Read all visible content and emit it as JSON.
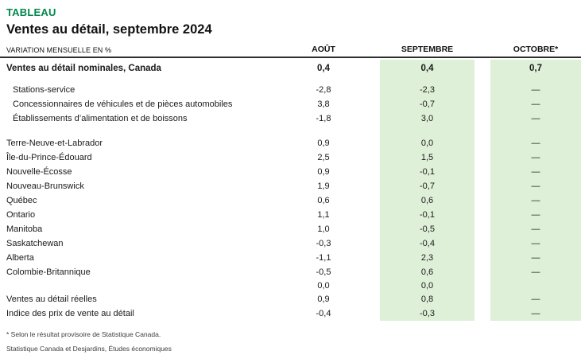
{
  "page": {
    "kicker": "TABLEAU",
    "title": "Ventes au détail, septembre 2024"
  },
  "colors": {
    "accent_green": "#00874e",
    "band_green": "#dff0d8",
    "rule_dark": "#2e2e2e"
  },
  "table": {
    "unit_label": "VARIATION MENSUELLE EN %",
    "columns": [
      "AOÛT",
      "SEPTEMBRE",
      "OCTOBRE*"
    ],
    "rows": [
      {
        "label": "Ventes au détail nominales, Canada",
        "style": "lead",
        "values": [
          "0,4",
          "0,4",
          "0,7"
        ]
      },
      {
        "style": "spacer-sm"
      },
      {
        "label": "Stations-service",
        "style": "sub",
        "indent": true,
        "values": [
          "-2,8",
          "-2,3",
          "—"
        ]
      },
      {
        "label": "Concessionnaires de véhicules et de pièces automobiles",
        "style": "sub",
        "indent": true,
        "values": [
          "3,8",
          "-0,7",
          "—"
        ]
      },
      {
        "label": "Établissements d’alimentation et de boissons",
        "style": "sub",
        "indent": true,
        "values": [
          "-1,8",
          "3,0",
          "—"
        ]
      },
      {
        "style": "spacer-lg"
      },
      {
        "label": "Terre-Neuve-et-Labrador",
        "style": "plain",
        "values": [
          "0,9",
          "0,0",
          "—"
        ]
      },
      {
        "label": "Île-du-Prince-Édouard",
        "style": "plain",
        "values": [
          "2,5",
          "1,5",
          "—"
        ]
      },
      {
        "label": "Nouvelle-Écosse",
        "style": "plain",
        "values": [
          "0,9",
          "-0,1",
          "—"
        ]
      },
      {
        "label": "Nouveau-Brunswick",
        "style": "plain",
        "values": [
          "1,9",
          "-0,7",
          "—"
        ]
      },
      {
        "label": "Québec",
        "style": "plain",
        "values": [
          "0,6",
          "0,6",
          "—"
        ]
      },
      {
        "label": "Ontario",
        "style": "plain",
        "values": [
          "1,1",
          "-0,1",
          "—"
        ]
      },
      {
        "label": "Manitoba",
        "style": "plain",
        "values": [
          "1,0",
          "-0,5",
          "—"
        ]
      },
      {
        "label": "Saskatchewan",
        "style": "plain",
        "values": [
          "-0,3",
          "-0,4",
          "—"
        ]
      },
      {
        "label": "Alberta",
        "style": "plain",
        "values": [
          "-1,1",
          "2,3",
          "—"
        ]
      },
      {
        "label": "Colombie-Britannique",
        "style": "plain",
        "values": [
          "-0,5",
          "0,6",
          "—"
        ]
      },
      {
        "label": "",
        "style": "blank",
        "values": [
          "0,0",
          "0,0",
          ""
        ]
      },
      {
        "label": "Ventes au détail réelles",
        "style": "plain",
        "values": [
          "0,9",
          "0,8",
          "—"
        ]
      },
      {
        "label": "Indice des prix de vente au détail",
        "style": "plain",
        "values": [
          "-0,4",
          "-0,3",
          "—"
        ]
      }
    ]
  },
  "footnotes": {
    "note": "* Selon le résultat provisoire de Statistique Canada.",
    "source": "Statistique Canada et Desjardins, Études économiques"
  },
  "chart_data": {
    "type": "table",
    "title": "Ventes au détail, septembre 2024",
    "unit": "Variation mensuelle en %",
    "columns": [
      "Août",
      "Septembre",
      "Octobre*"
    ],
    "rows": [
      [
        "Ventes au détail nominales, Canada",
        "0,4",
        "0,4",
        "0,7"
      ],
      [
        "Stations-service",
        "-2,8",
        "-2,3",
        "—"
      ],
      [
        "Concessionnaires de véhicules et de pièces automobiles",
        "3,8",
        "-0,7",
        "—"
      ],
      [
        "Établissements d’alimentation et de boissons",
        "-1,8",
        "3,0",
        "—"
      ],
      [
        "Terre-Neuve-et-Labrador",
        "0,9",
        "0,0",
        "—"
      ],
      [
        "Île-du-Prince-Édouard",
        "2,5",
        "1,5",
        "—"
      ],
      [
        "Nouvelle-Écosse",
        "0,9",
        "-0,1",
        "—"
      ],
      [
        "Nouveau-Brunswick",
        "1,9",
        "-0,7",
        "—"
      ],
      [
        "Québec",
        "0,6",
        "0,6",
        "—"
      ],
      [
        "Ontario",
        "1,1",
        "-0,1",
        "—"
      ],
      [
        "Manitoba",
        "1,0",
        "-0,5",
        "—"
      ],
      [
        "Saskatchewan",
        "-0,3",
        "-0,4",
        "—"
      ],
      [
        "Alberta",
        "-1,1",
        "2,3",
        "—"
      ],
      [
        "Colombie-Britannique",
        "-0,5",
        "0,6",
        "—"
      ],
      [
        "",
        "0,0",
        "0,0",
        ""
      ],
      [
        "Ventes au détail réelles",
        "0,9",
        "0,8",
        "—"
      ],
      [
        "Indice des prix de vente au détail",
        "-0,4",
        "-0,3",
        "—"
      ]
    ]
  }
}
